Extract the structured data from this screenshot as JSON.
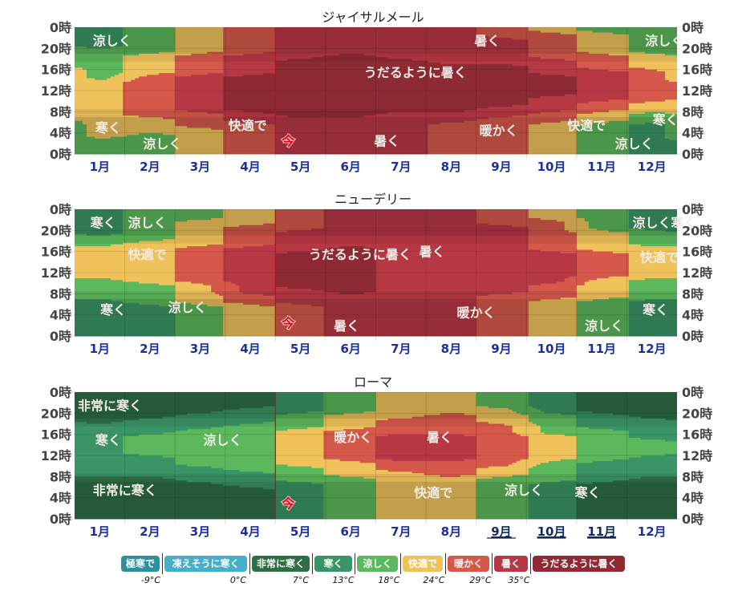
{
  "categories": [
    {
      "key": "extreme_cold",
      "label": "極寒で",
      "color": "#2f8f9e"
    },
    {
      "key": "freezing",
      "label": "凍えそうに寒く",
      "color": "#45aecb"
    },
    {
      "key": "very_cold",
      "label": "非常に寒く",
      "color": "#2e6e45"
    },
    {
      "key": "cold",
      "label": "寒く",
      "color": "#3a9466"
    },
    {
      "key": "cool",
      "label": "涼しく",
      "color": "#5cb85c"
    },
    {
      "key": "comfortable",
      "label": "快適で",
      "color": "#efc25c"
    },
    {
      "key": "warm",
      "label": "暖かく",
      "color": "#d6584b"
    },
    {
      "key": "hot",
      "label": "暑く",
      "color": "#b73845"
    },
    {
      "key": "sweltering",
      "label": "うだるように暑く",
      "color": "#8e2a33"
    }
  ],
  "legend_thresholds": [
    "-9°C",
    "0°C",
    "7°C",
    "13°C",
    "18°C",
    "24°C",
    "29°C",
    "35°C"
  ],
  "now_marker": {
    "label": "今",
    "month": 4.0,
    "color": "#e00010"
  },
  "chart_data": [
    {
      "type": "heatmap",
      "title": "ジャイサルメール",
      "xlabel": "",
      "ylabel": "",
      "x_ticks": [
        "1月",
        "2月",
        "3月",
        "4月",
        "5月",
        "6月",
        "7月",
        "8月",
        "9月",
        "10月",
        "11月",
        "12月"
      ],
      "y_ticks": [
        "0時",
        "20時",
        "16時",
        "12時",
        "8時",
        "4時",
        "0時"
      ],
      "x_range": [
        0,
        12
      ],
      "y_range": [
        0,
        24
      ],
      "linked_months": [],
      "now_label_hour": 2.5,
      "grid": [
        [
          4,
          4,
          4,
          5,
          5,
          5,
          5,
          5,
          5,
          5,
          5,
          5,
          5,
          5,
          4,
          4,
          4,
          4,
          4,
          4,
          3,
          3,
          3,
          3
        ],
        [
          4,
          4,
          4,
          4,
          5,
          5,
          5,
          6,
          6,
          6,
          6,
          6,
          6,
          6,
          6,
          5,
          5,
          5,
          5,
          4,
          4,
          4,
          4,
          4
        ],
        [
          5,
          5,
          5,
          5,
          5,
          6,
          6,
          6,
          7,
          7,
          7,
          7,
          7,
          7,
          7,
          6,
          6,
          6,
          6,
          5,
          5,
          5,
          5,
          5
        ],
        [
          6,
          6,
          6,
          6,
          6,
          6,
          7,
          7,
          8,
          8,
          8,
          8,
          8,
          8,
          8,
          7,
          7,
          7,
          7,
          6,
          6,
          6,
          6,
          6
        ],
        [
          7,
          7,
          7,
          7,
          7,
          7,
          7,
          8,
          8,
          8,
          8,
          8,
          8,
          8,
          8,
          8,
          8,
          8,
          7,
          7,
          7,
          7,
          7,
          7
        ],
        [
          7,
          7,
          7,
          7,
          7,
          7,
          7,
          8,
          8,
          8,
          8,
          8,
          8,
          8,
          8,
          8,
          8,
          8,
          8,
          7,
          7,
          7,
          7,
          7
        ],
        [
          7,
          7,
          7,
          7,
          7,
          7,
          7,
          7,
          8,
          8,
          8,
          8,
          8,
          8,
          8,
          8,
          8,
          8,
          7,
          7,
          7,
          7,
          7,
          7
        ],
        [
          6,
          6,
          6,
          6,
          6,
          6,
          7,
          7,
          8,
          8,
          8,
          8,
          8,
          8,
          8,
          8,
          8,
          7,
          7,
          7,
          7,
          7,
          7,
          7
        ],
        [
          6,
          6,
          6,
          6,
          6,
          6,
          6,
          7,
          7,
          8,
          8,
          8,
          8,
          8,
          8,
          8,
          8,
          7,
          7,
          7,
          7,
          7,
          6,
          6
        ],
        [
          5,
          5,
          5,
          5,
          5,
          5,
          6,
          6,
          7,
          7,
          7,
          8,
          8,
          8,
          8,
          7,
          7,
          7,
          6,
          6,
          6,
          6,
          6,
          5
        ],
        [
          4,
          4,
          4,
          4,
          4,
          4,
          5,
          5,
          6,
          6,
          7,
          7,
          7,
          7,
          7,
          7,
          6,
          6,
          6,
          5,
          5,
          5,
          5,
          4
        ],
        [
          3,
          3,
          3,
          3,
          3,
          3,
          4,
          4,
          5,
          5,
          6,
          6,
          6,
          6,
          6,
          6,
          5,
          5,
          5,
          4,
          4,
          4,
          4,
          4
        ]
      ],
      "labels": [
        {
          "text": "涼しく",
          "month": 0.3,
          "hour": 21.5
        },
        {
          "text": "寒く",
          "month": 0.35,
          "hour": 5.0
        },
        {
          "text": "涼しく",
          "month": 1.3,
          "hour": 2.0
        },
        {
          "text": "快適で",
          "month": 3.0,
          "hour": 5.5
        },
        {
          "text": "うだるように暑く",
          "month": 5.7,
          "hour": 15.5
        },
        {
          "text": "暑く",
          "month": 7.9,
          "hour": 21.5
        },
        {
          "text": "暑く",
          "month": 5.9,
          "hour": 2.5
        },
        {
          "text": "暖かく",
          "month": 8.0,
          "hour": 4.5
        },
        {
          "text": "快適で",
          "month": 9.75,
          "hour": 5.5
        },
        {
          "text": "涼しく",
          "month": 10.7,
          "hour": 2.0
        },
        {
          "text": "涼しく",
          "month": 11.3,
          "hour": 21.5
        },
        {
          "text": "寒く",
          "month": 11.45,
          "hour": 6.5
        }
      ]
    },
    {
      "type": "heatmap",
      "title": "ニューデリー",
      "xlabel": "",
      "ylabel": "",
      "x_ticks": [
        "1月",
        "2月",
        "3月",
        "4月",
        "5月",
        "6月",
        "7月",
        "8月",
        "9月",
        "10月",
        "11月",
        "12月"
      ],
      "y_ticks": [
        "0時",
        "20時",
        "16時",
        "12時",
        "8時",
        "4時",
        "0時"
      ],
      "x_range": [
        0,
        12
      ],
      "y_range": [
        0,
        24
      ],
      "linked_months": [],
      "now_label_hour": 2.5,
      "grid": [
        [
          3,
          3,
          3,
          3,
          3,
          3,
          3,
          4,
          4,
          4,
          4,
          5,
          5,
          5,
          5,
          5,
          5,
          4,
          4,
          3,
          3,
          3,
          3,
          3
        ],
        [
          3,
          3,
          3,
          3,
          3,
          3,
          4,
          4,
          4,
          4,
          5,
          5,
          5,
          5,
          5,
          5,
          5,
          5,
          4,
          4,
          4,
          4,
          4,
          4
        ],
        [
          4,
          4,
          4,
          4,
          4,
          4,
          5,
          5,
          5,
          5,
          6,
          6,
          6,
          6,
          6,
          6,
          6,
          5,
          5,
          5,
          5,
          5,
          4,
          4
        ],
        [
          5,
          5,
          5,
          5,
          5,
          5,
          6,
          6,
          7,
          7,
          7,
          7,
          7,
          7,
          7,
          7,
          7,
          6,
          6,
          6,
          6,
          5,
          5,
          5
        ],
        [
          6,
          6,
          6,
          6,
          6,
          6,
          7,
          7,
          7,
          8,
          8,
          8,
          8,
          8,
          8,
          8,
          7,
          7,
          7,
          7,
          6,
          6,
          6,
          6
        ],
        [
          7,
          7,
          7,
          7,
          7,
          7,
          7,
          7,
          8,
          8,
          8,
          8,
          8,
          8,
          8,
          8,
          8,
          7,
          7,
          7,
          7,
          7,
          7,
          7
        ],
        [
          7,
          7,
          7,
          7,
          7,
          7,
          7,
          7,
          7,
          7,
          7,
          7,
          7,
          7,
          7,
          7,
          7,
          7,
          7,
          7,
          7,
          7,
          7,
          7
        ],
        [
          7,
          7,
          7,
          7,
          7,
          7,
          7,
          7,
          7,
          7,
          7,
          7,
          7,
          7,
          7,
          7,
          7,
          7,
          7,
          7,
          7,
          7,
          7,
          7
        ],
        [
          6,
          6,
          6,
          6,
          6,
          6,
          6,
          6,
          7,
          7,
          7,
          7,
          7,
          7,
          7,
          7,
          7,
          7,
          7,
          7,
          7,
          6,
          6,
          6
        ],
        [
          5,
          5,
          5,
          5,
          5,
          5,
          5,
          6,
          6,
          6,
          7,
          7,
          7,
          7,
          7,
          7,
          6,
          6,
          6,
          6,
          6,
          6,
          5,
          5
        ],
        [
          4,
          4,
          4,
          4,
          4,
          4,
          4,
          5,
          5,
          5,
          5,
          6,
          6,
          6,
          6,
          6,
          5,
          5,
          5,
          5,
          4,
          4,
          4,
          4
        ],
        [
          3,
          3,
          3,
          3,
          3,
          3,
          3,
          4,
          4,
          4,
          4,
          5,
          5,
          5,
          5,
          5,
          5,
          4,
          4,
          4,
          3,
          3,
          3,
          3
        ]
      ],
      "labels": [
        {
          "text": "寒く",
          "month": 0.25,
          "hour": 21.5
        },
        {
          "text": "涼しく",
          "month": 1.0,
          "hour": 21.5
        },
        {
          "text": "快適で",
          "month": 1.0,
          "hour": 15.5
        },
        {
          "text": "寒く",
          "month": 0.45,
          "hour": 5.0
        },
        {
          "text": "涼しく",
          "month": 1.8,
          "hour": 5.5
        },
        {
          "text": "うだるように暑く",
          "month": 4.6,
          "hour": 15.5
        },
        {
          "text": "暑く",
          "month": 6.8,
          "hour": 16.0
        },
        {
          "text": "暑く",
          "month": 5.1,
          "hour": 2.0
        },
        {
          "text": "暖かく",
          "month": 7.55,
          "hour": 4.5
        },
        {
          "text": "涼しく",
          "month": 10.1,
          "hour": 2.0
        },
        {
          "text": "涼しく寒く",
          "month": 11.05,
          "hour": 21.5
        },
        {
          "text": "快適で",
          "month": 11.2,
          "hour": 15.0
        },
        {
          "text": "寒く",
          "month": 11.25,
          "hour": 5.0
        }
      ]
    },
    {
      "type": "heatmap",
      "title": "ローマ",
      "xlabel": "",
      "ylabel": "",
      "x_ticks": [
        "1月",
        "2月",
        "3月",
        "4月",
        "5月",
        "6月",
        "7月",
        "8月",
        "9月",
        "10月",
        "11月",
        "12月"
      ],
      "y_ticks": [
        "0時",
        "20時",
        "16時",
        "12時",
        "8時",
        "4時",
        "0時"
      ],
      "x_range": [
        0,
        12
      ],
      "y_range": [
        0,
        24
      ],
      "linked_months": [
        8,
        9,
        10
      ],
      "now_label_hour": 3.0,
      "grid": [
        [
          2,
          2,
          2,
          2,
          2,
          2,
          2,
          2,
          3,
          3,
          3,
          3,
          3,
          3,
          3,
          3,
          3,
          3,
          2,
          2,
          2,
          2,
          2,
          2
        ],
        [
          2,
          2,
          2,
          2,
          2,
          2,
          2,
          2,
          3,
          3,
          3,
          3,
          4,
          4,
          4,
          4,
          3,
          3,
          3,
          2,
          2,
          2,
          2,
          2
        ],
        [
          2,
          2,
          2,
          2,
          2,
          2,
          2,
          3,
          3,
          3,
          4,
          4,
          4,
          4,
          4,
          4,
          4,
          3,
          3,
          3,
          2,
          2,
          2,
          2
        ],
        [
          2,
          2,
          2,
          2,
          2,
          2,
          3,
          3,
          3,
          4,
          4,
          4,
          4,
          4,
          4,
          4,
          4,
          4,
          3,
          3,
          3,
          2,
          2,
          2
        ],
        [
          3,
          3,
          3,
          3,
          3,
          3,
          3,
          4,
          4,
          4,
          5,
          5,
          5,
          5,
          5,
          5,
          5,
          4,
          4,
          4,
          3,
          3,
          3,
          3
        ],
        [
          4,
          4,
          4,
          4,
          4,
          4,
          4,
          4,
          5,
          5,
          5,
          6,
          6,
          6,
          6,
          6,
          6,
          5,
          5,
          5,
          4,
          4,
          4,
          4
        ],
        [
          5,
          5,
          5,
          5,
          5,
          5,
          5,
          5,
          5,
          6,
          6,
          7,
          7,
          7,
          7,
          7,
          6,
          6,
          6,
          5,
          5,
          5,
          5,
          5
        ],
        [
          5,
          5,
          5,
          5,
          5,
          5,
          5,
          5,
          6,
          6,
          6,
          7,
          7,
          7,
          7,
          7,
          6,
          6,
          6,
          6,
          5,
          5,
          5,
          5
        ],
        [
          4,
          4,
          4,
          4,
          4,
          4,
          4,
          4,
          5,
          5,
          6,
          6,
          6,
          6,
          6,
          6,
          6,
          6,
          5,
          5,
          5,
          4,
          4,
          4
        ],
        [
          3,
          3,
          3,
          3,
          3,
          3,
          3,
          4,
          4,
          4,
          4,
          5,
          5,
          5,
          5,
          5,
          4,
          4,
          4,
          4,
          3,
          3,
          3,
          3
        ],
        [
          2,
          2,
          2,
          2,
          2,
          2,
          2,
          3,
          3,
          3,
          3,
          4,
          4,
          4,
          4,
          4,
          4,
          3,
          3,
          3,
          2,
          2,
          2,
          2
        ],
        [
          2,
          2,
          2,
          2,
          2,
          2,
          2,
          2,
          3,
          3,
          3,
          3,
          4,
          4,
          4,
          3,
          3,
          3,
          3,
          2,
          2,
          2,
          2,
          2
        ]
      ],
      "labels": [
        {
          "text": "非常に寒く",
          "month": 0.0,
          "hour": 21.5
        },
        {
          "text": "寒く",
          "month": 0.35,
          "hour": 15.0
        },
        {
          "text": "涼しく",
          "month": 2.5,
          "hour": 15.0
        },
        {
          "text": "非常に寒く",
          "month": 0.3,
          "hour": 5.5
        },
        {
          "text": "暖かく",
          "month": 5.1,
          "hour": 15.5
        },
        {
          "text": "暑く",
          "month": 6.95,
          "hour": 15.5
        },
        {
          "text": "快適で",
          "month": 6.7,
          "hour": 5.0
        },
        {
          "text": "涼しく",
          "month": 8.5,
          "hour": 5.5
        },
        {
          "text": "寒く",
          "month": 9.9,
          "hour": 5.0
        }
      ]
    }
  ]
}
